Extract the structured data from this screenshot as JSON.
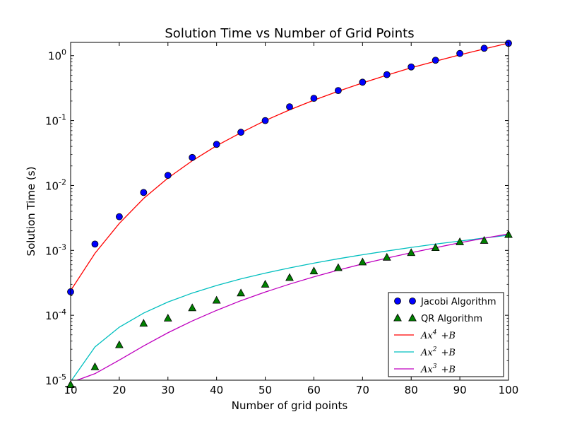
{
  "chart_data": {
    "type": "scatter",
    "title": "Solution Time vs Number of Grid Points",
    "xlabel": "Number of grid points",
    "ylabel": "Solution Time (s)",
    "xlim": [
      10,
      100
    ],
    "ylim": [
      1e-05,
      1.6
    ],
    "yscale": "log",
    "x_ticks": [
      "10",
      "20",
      "30",
      "40",
      "50",
      "60",
      "70",
      "80",
      "90",
      "100"
    ],
    "y_ticks": [
      {
        "value": 1e-05,
        "base": "10",
        "exp": "-5"
      },
      {
        "value": 0.0001,
        "base": "10",
        "exp": "-4"
      },
      {
        "value": 0.001,
        "base": "10",
        "exp": "-3"
      },
      {
        "value": 0.01,
        "base": "10",
        "exp": "-2"
      },
      {
        "value": 0.1,
        "base": "10",
        "exp": "-1"
      },
      {
        "value": 1,
        "base": "10",
        "exp": "0"
      }
    ],
    "grid": false,
    "legend_position": "lower-right",
    "series": [
      {
        "name": "Jacobi Algorithm",
        "kind": "points",
        "marker": "circle",
        "color": "#0000ff",
        "x": [
          10,
          15,
          20,
          25,
          30,
          35,
          40,
          45,
          50,
          55,
          60,
          65,
          70,
          75,
          80,
          85,
          90,
          95,
          100
        ],
        "y": [
          0.00023,
          0.00125,
          0.0033,
          0.0078,
          0.0143,
          0.027,
          0.043,
          0.066,
          0.1,
          0.163,
          0.22,
          0.29,
          0.39,
          0.51,
          0.67,
          0.85,
          1.08,
          1.3,
          1.55
        ]
      },
      {
        "name": "QR Algorithm",
        "kind": "points",
        "marker": "triangle",
        "color": "#008000",
        "x": [
          10,
          15,
          20,
          25,
          30,
          35,
          40,
          45,
          50,
          55,
          60,
          65,
          70,
          75,
          80,
          85,
          90,
          95,
          100
        ],
        "y": [
          8.5e-06,
          1.6e-05,
          3.5e-05,
          7.5e-05,
          9e-05,
          0.00013,
          0.00017,
          0.00022,
          0.0003,
          0.00038,
          0.00048,
          0.00054,
          0.00066,
          0.00078,
          0.00092,
          0.0011,
          0.00135,
          0.00142,
          0.00175
        ]
      },
      {
        "name": "Ax⁴ +B",
        "name_main": "Ax",
        "name_exp": "4",
        "name_tail": "+B",
        "kind": "line",
        "color": "#ff0000",
        "x": [
          10,
          15,
          20,
          25,
          30,
          35,
          40,
          45,
          50,
          55,
          60,
          65,
          70,
          75,
          80,
          85,
          90,
          95,
          100
        ],
        "y": [
          0.00024,
          0.0009,
          0.0026,
          0.0063,
          0.013,
          0.024,
          0.041,
          0.065,
          0.1,
          0.146,
          0.206,
          0.283,
          0.38,
          0.5,
          0.65,
          0.82,
          1.03,
          1.27,
          1.56
        ]
      },
      {
        "name": "Ax² +B",
        "name_main": "Ax",
        "name_exp": "2",
        "name_tail": "+B",
        "kind": "line",
        "color": "#00bfbf",
        "x": [
          10,
          15,
          20,
          25,
          30,
          35,
          40,
          45,
          50,
          55,
          60,
          65,
          70,
          75,
          80,
          85,
          90,
          95,
          100
        ],
        "y": [
          9.5e-06,
          3.25e-05,
          6.55e-05,
          0.000108,
          0.00016,
          0.00022,
          0.000288,
          0.000364,
          0.000446,
          0.000537,
          0.000636,
          0.000742,
          0.000856,
          0.000978,
          0.00111,
          0.00125,
          0.00139,
          0.00155,
          0.00171
        ]
      },
      {
        "name": "Ax³ +B",
        "name_main": "Ax",
        "name_exp": "3",
        "name_tail": "+B",
        "kind": "line",
        "color": "#bf00bf",
        "x": [
          10,
          15,
          20,
          25,
          30,
          35,
          40,
          45,
          50,
          55,
          60,
          65,
          70,
          75,
          80,
          85,
          90,
          95,
          100
        ],
        "y": [
          9.2e-06,
          1.26e-05,
          2.04e-05,
          3.37e-05,
          5.38e-05,
          8.18e-05,
          0.000119,
          0.000168,
          0.000228,
          0.000302,
          0.000391,
          0.000496,
          0.000619,
          0.00076,
          0.000921,
          0.0011,
          0.00131,
          0.00154,
          0.00179
        ]
      }
    ]
  }
}
